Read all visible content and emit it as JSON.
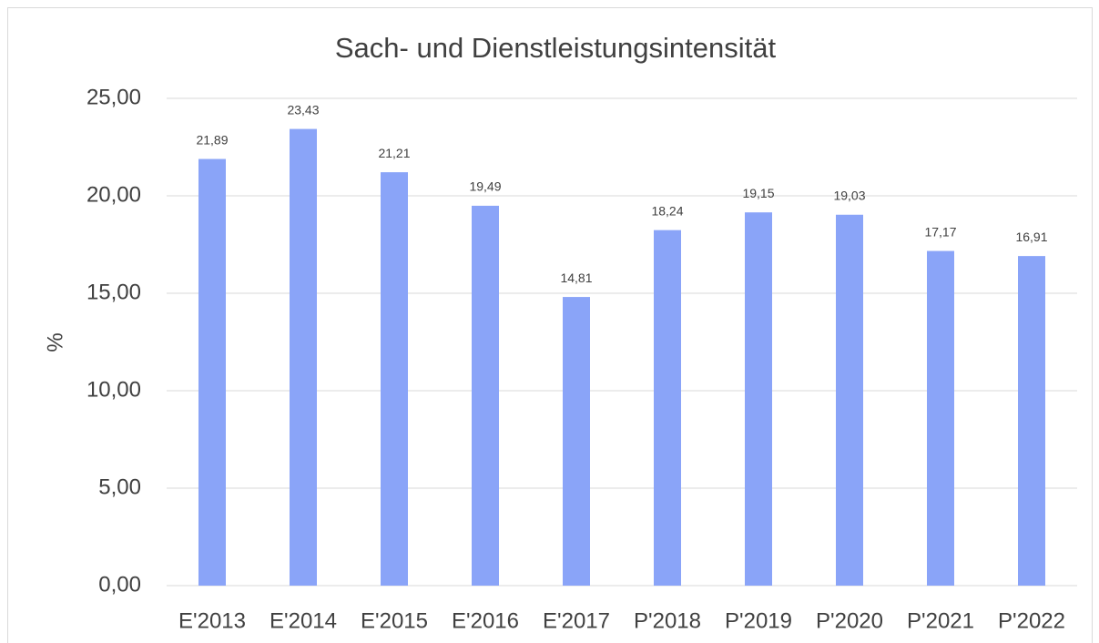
{
  "chart_data": {
    "type": "bar",
    "title": "Sach- und Dienstleistungsintensität",
    "y_label": "%",
    "categories": [
      "E'2013",
      "E'2014",
      "E'2015",
      "E'2016",
      "E'2017",
      "P'2018",
      "P'2019",
      "P'2020",
      "P'2021",
      "P'2022"
    ],
    "values": [
      21.89,
      23.43,
      21.21,
      19.49,
      14.81,
      18.24,
      19.15,
      19.03,
      17.17,
      16.91
    ],
    "value_labels": [
      "21,89",
      "23,43",
      "21,21",
      "19,49",
      "14,81",
      "18,24",
      "19,15",
      "19,03",
      "17,17",
      "16,91"
    ],
    "color": "#8aa4f8",
    "ylim": [
      0,
      25
    ],
    "yticks": [
      {
        "value": 0,
        "label": "0,00"
      },
      {
        "value": 5,
        "label": "5,00"
      },
      {
        "value": 10,
        "label": "10,00"
      },
      {
        "value": 15,
        "label": "15,00"
      },
      {
        "value": 20,
        "label": "20,00"
      },
      {
        "value": 25,
        "label": "25,00"
      }
    ],
    "grid": true
  }
}
